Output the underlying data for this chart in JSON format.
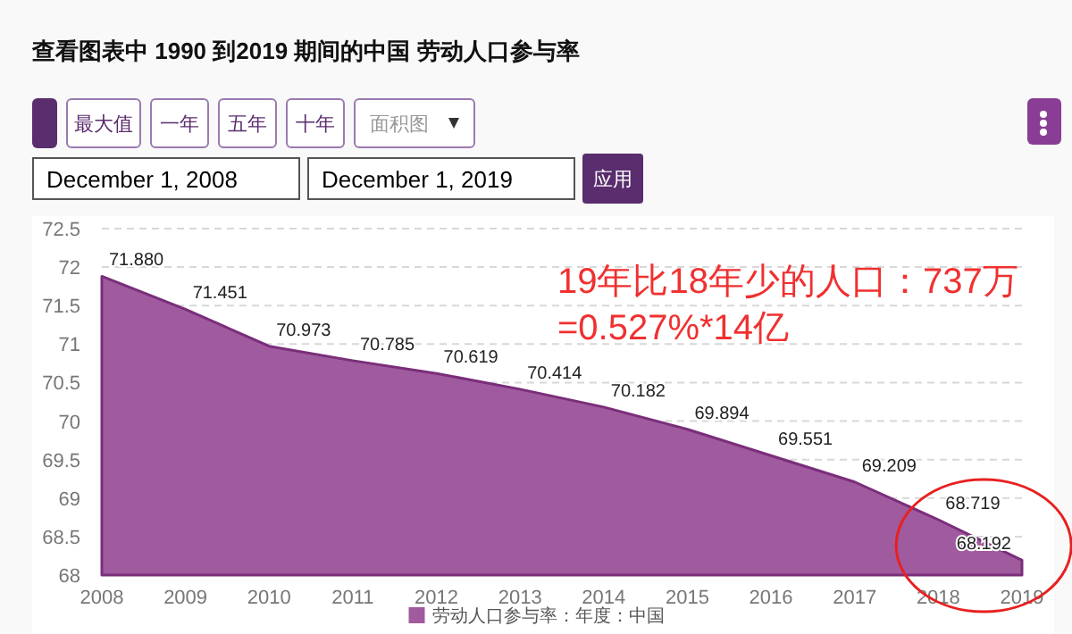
{
  "chart_data": {
    "type": "area",
    "title": "查看图表中 1990 到2019 期间的中国 劳动人口参与率",
    "x": [
      2008,
      2009,
      2010,
      2011,
      2012,
      2013,
      2014,
      2015,
      2016,
      2017,
      2018,
      2019
    ],
    "series": [
      {
        "name": "劳动人口参与率：年度：中国",
        "color": "#a05a9e",
        "values": [
          71.88,
          71.451,
          70.973,
          70.785,
          70.619,
          70.414,
          70.182,
          69.894,
          69.551,
          69.209,
          68.719,
          68.192
        ],
        "value_labels": [
          "71.880",
          "71.451",
          "70.973",
          "70.785",
          "70.619",
          "70.414",
          "70.182",
          "69.894",
          "69.551",
          "69.209",
          "68.719",
          "68.192"
        ]
      }
    ],
    "xlim": [
      2008,
      2019
    ],
    "xticks": [
      2008,
      2009,
      2010,
      2011,
      2012,
      2013,
      2014,
      2015,
      2016,
      2017,
      2018,
      2019
    ],
    "ylim": [
      68,
      72.5
    ],
    "yticks": [
      68,
      68.5,
      69,
      69.5,
      70,
      70.5,
      71,
      71.5,
      72,
      72.5
    ],
    "grid": "y",
    "legend": "bottom",
    "annotations": [
      "最大值",
      "一年",
      "五年",
      "十年",
      "面积图",
      "December 1, 2008",
      "December 1, 2019",
      "应用",
      "19年比18年少的人口：737万",
      "=0.527%*14亿"
    ]
  }
}
